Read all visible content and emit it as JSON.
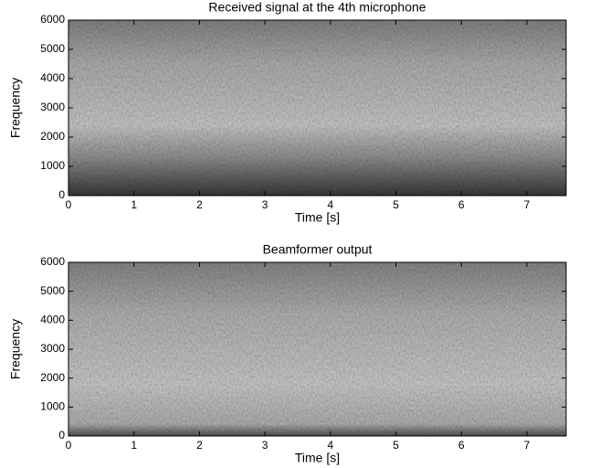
{
  "chart_data": [
    {
      "type": "spectrogram",
      "title": "Received signal at the 4th microphone",
      "xlabel": "Time [s]",
      "ylabel": "Frequency",
      "xlim": [
        0,
        7.6
      ],
      "ylim": [
        0,
        6000
      ],
      "xticks": [
        0,
        1,
        2,
        3,
        4,
        5,
        6,
        7
      ],
      "yticks": [
        0,
        1000,
        2000,
        3000,
        4000,
        5000,
        6000
      ]
    },
    {
      "type": "spectrogram",
      "title": "Beamformer output",
      "xlabel": "Time [s]",
      "ylabel": "Frequency",
      "xlim": [
        0,
        7.6
      ],
      "ylim": [
        0,
        6000
      ],
      "xticks": [
        0,
        1,
        2,
        3,
        4,
        5,
        6,
        7
      ],
      "yticks": [
        0,
        1000,
        2000,
        3000,
        4000,
        5000,
        6000
      ]
    }
  ]
}
